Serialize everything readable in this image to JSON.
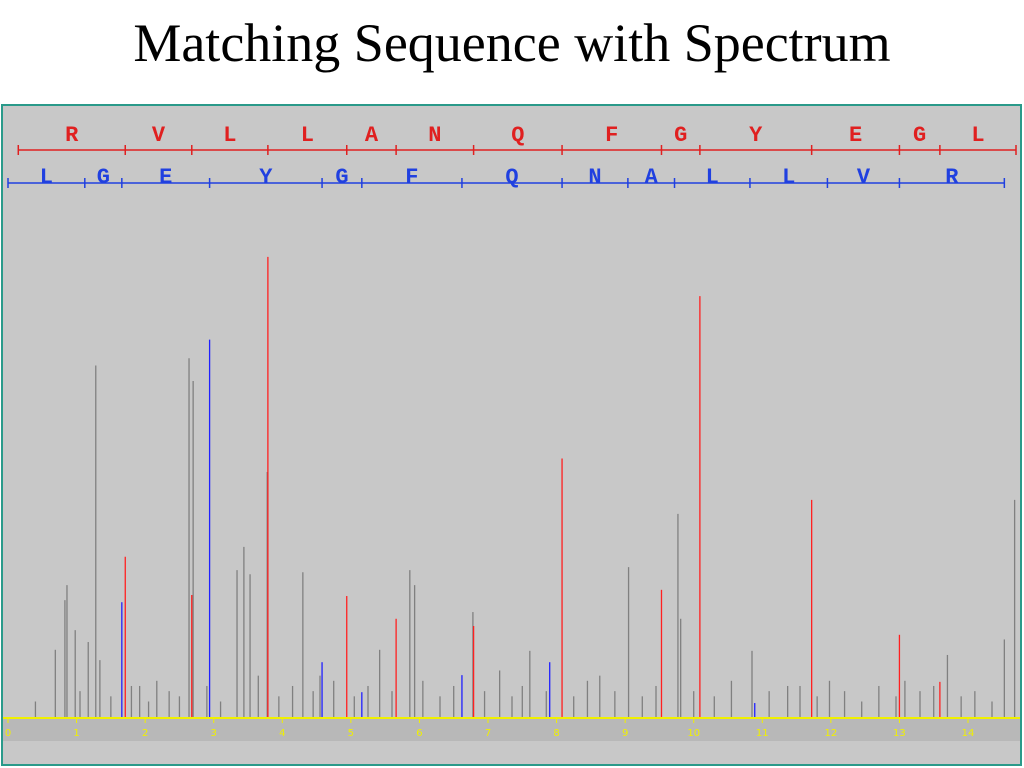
{
  "title": "Matching Sequence with Spectrum",
  "chart_data": {
    "type": "spectrum",
    "xlim": [
      0,
      14.7
    ],
    "ylim": [
      0,
      100
    ],
    "xticks": [
      0,
      1,
      2,
      3,
      4,
      5,
      6,
      7,
      8,
      9,
      10,
      11,
      12,
      13,
      14
    ],
    "axis_color": "#f0f000",
    "background": "#c8c8c8",
    "series": [
      {
        "color": "#808080",
        "x": [
          0.69,
          0.83,
          0.86,
          0.98,
          1.17,
          1.28,
          1.34,
          1.92,
          2.17,
          2.64,
          2.7,
          3.34,
          3.44,
          3.53,
          3.78,
          4.3,
          4.55,
          5.42,
          5.86,
          5.93,
          6.78,
          7.17,
          7.61,
          8.63,
          9.05,
          9.77,
          9.81,
          10.85,
          11.37,
          11.98,
          13.08,
          13.7,
          14.53,
          14.68,
          0.4,
          1.05,
          1.5,
          1.8,
          2.05,
          2.35,
          2.5,
          2.9,
          3.1,
          3.65,
          3.95,
          4.15,
          4.45,
          4.75,
          5.05,
          5.25,
          5.6,
          6.05,
          6.3,
          6.5,
          6.95,
          7.35,
          7.5,
          7.85,
          8.25,
          8.45,
          8.85,
          9.25,
          9.45,
          10.0,
          10.3,
          10.55,
          11.1,
          11.55,
          11.8,
          12.2,
          12.45,
          12.7,
          12.95,
          13.3,
          13.5,
          13.9,
          14.1,
          14.35
        ],
        "values": [
          13,
          22.6,
          25.5,
          16.8,
          14.5,
          68,
          11,
          6,
          7,
          69.4,
          65,
          28.4,
          32.9,
          27.6,
          47.4,
          28,
          8,
          13,
          28.4,
          25.5,
          20.3,
          9,
          12.8,
          8,
          29,
          39.3,
          19,
          12.8,
          6,
          7,
          7,
          12,
          15,
          42,
          3,
          5,
          4,
          6,
          3,
          5,
          4,
          6,
          3,
          8,
          4,
          6,
          5,
          7,
          4,
          6,
          5,
          7,
          4,
          6,
          5,
          4,
          6,
          5,
          4,
          7,
          5,
          4,
          6,
          5,
          4,
          7,
          5,
          6,
          4,
          5,
          3,
          6,
          4,
          5,
          6,
          4,
          5,
          3
        ]
      },
      {
        "color": "#ff2020",
        "x": [
          1.71,
          2.68,
          3.79,
          4.94,
          5.66,
          6.79,
          8.08,
          9.53,
          10.09,
          11.72,
          13.0,
          13.59
        ],
        "values": [
          31,
          23.6,
          89,
          23.4,
          19,
          17.6,
          50,
          24.6,
          81.4,
          42,
          15.9,
          6.8
        ]
      },
      {
        "color": "#2020ff",
        "x": [
          1.66,
          2.94,
          4.58,
          5.16,
          6.62,
          7.9,
          10.89
        ],
        "values": [
          22.2,
          73,
          10.6,
          4.8,
          8.1,
          10.6,
          2.7
        ]
      }
    ],
    "sequences": [
      {
        "color": "#e02020",
        "residues": [
          "R",
          "V",
          "L",
          "L",
          "A",
          "N",
          "Q",
          "F",
          "G",
          "Y",
          "E",
          "G",
          "L"
        ],
        "boundaries": [
          0.15,
          1.71,
          2.68,
          3.79,
          4.94,
          5.66,
          6.79,
          8.08,
          9.53,
          10.09,
          11.72,
          13.0,
          13.59,
          14.7
        ]
      },
      {
        "color": "#2040e0",
        "residues": [
          "L",
          "G",
          "E",
          "Y",
          "G",
          "F",
          "Q",
          "N",
          "A",
          "L",
          "L",
          "V",
          "R"
        ],
        "boundaries": [
          0,
          1.12,
          1.66,
          2.94,
          4.58,
          5.16,
          6.62,
          8.08,
          9.04,
          9.72,
          10.82,
          11.95,
          13.0,
          14.53
        ]
      }
    ]
  }
}
